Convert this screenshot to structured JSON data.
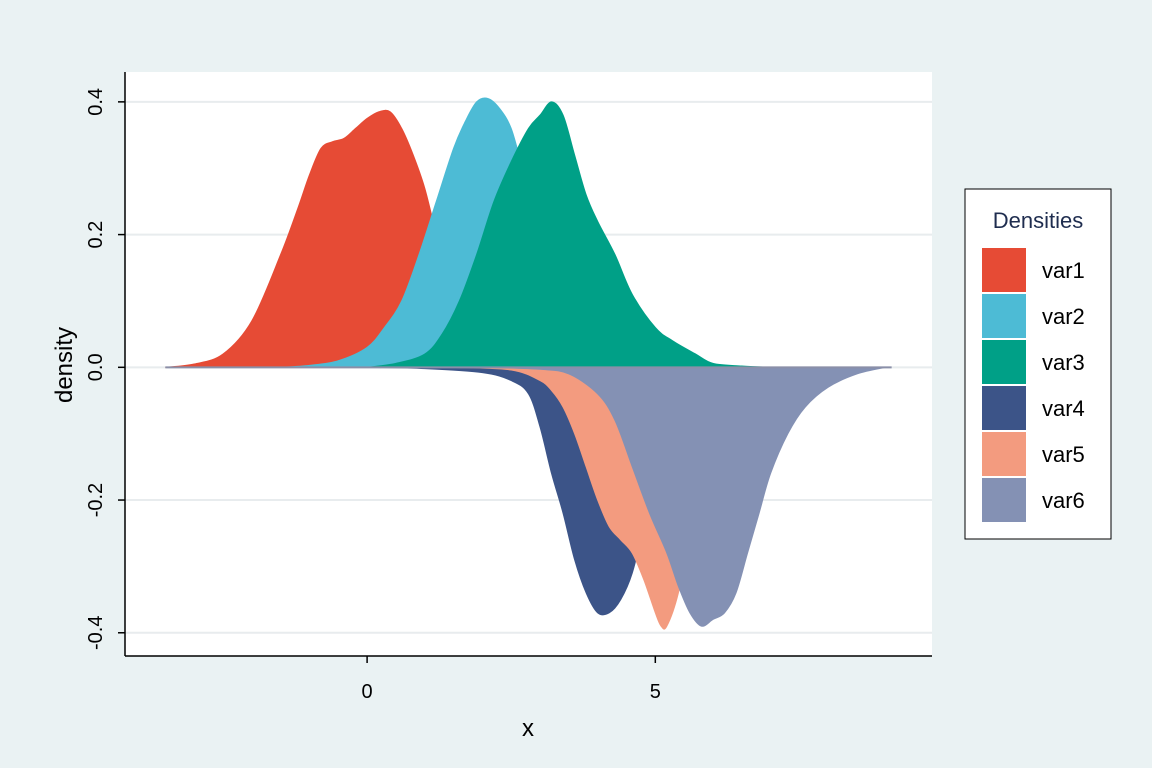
{
  "chart_data": {
    "type": "area",
    "title": "",
    "xlabel": "x",
    "ylabel": "density",
    "xlim": [
      -4.2,
      9.8
    ],
    "ylim": [
      -0.435,
      0.445
    ],
    "xticks": [
      0,
      5
    ],
    "xtick_labels": [
      "0",
      "5"
    ],
    "yticks": [
      -0.4,
      -0.2,
      0.0,
      0.2,
      0.4
    ],
    "ytick_labels": [
      "-0.4",
      "-0.2",
      "0.0",
      "0.2",
      "0.4"
    ],
    "grid": "horizontal",
    "legend": {
      "title": "Densities",
      "position": "right"
    },
    "series": [
      {
        "name": "var1",
        "direction": "up",
        "color": "#e64b35",
        "x": [
          -3.5,
          -3.0,
          -2.5,
          -2.0,
          -1.5,
          -1.2,
          -1.0,
          -0.8,
          -0.6,
          -0.4,
          -0.2,
          0.0,
          0.2,
          0.4,
          0.6,
          0.8,
          1.0,
          1.2,
          1.4,
          1.6,
          1.8,
          2.0,
          2.5,
          3.0
        ],
        "y": [
          0.0,
          0.005,
          0.02,
          0.07,
          0.17,
          0.24,
          0.29,
          0.33,
          0.34,
          0.345,
          0.36,
          0.375,
          0.385,
          0.385,
          0.36,
          0.32,
          0.27,
          0.2,
          0.13,
          0.08,
          0.04,
          0.02,
          0.004,
          0.0
        ]
      },
      {
        "name": "var2",
        "direction": "up",
        "color": "#4dbbd5",
        "x": [
          -1.5,
          -1.0,
          -0.5,
          0.0,
          0.3,
          0.6,
          0.9,
          1.2,
          1.5,
          1.7,
          1.9,
          2.1,
          2.3,
          2.5,
          2.7,
          3.0,
          3.3,
          3.6,
          4.0,
          4.5,
          5.0
        ],
        "y": [
          0.0,
          0.003,
          0.01,
          0.03,
          0.06,
          0.1,
          0.17,
          0.25,
          0.33,
          0.37,
          0.4,
          0.405,
          0.39,
          0.36,
          0.3,
          0.22,
          0.14,
          0.08,
          0.03,
          0.008,
          0.0
        ]
      },
      {
        "name": "var3",
        "direction": "up",
        "color": "#00a087",
        "x": [
          0.0,
          0.5,
          1.0,
          1.3,
          1.6,
          1.9,
          2.2,
          2.5,
          2.8,
          3.0,
          3.2,
          3.4,
          3.6,
          3.8,
          4.0,
          4.3,
          4.6,
          5.0,
          5.3,
          5.7,
          6.0,
          6.5,
          7.0
        ],
        "y": [
          0.0,
          0.006,
          0.02,
          0.05,
          0.1,
          0.17,
          0.25,
          0.31,
          0.36,
          0.38,
          0.4,
          0.38,
          0.32,
          0.26,
          0.22,
          0.17,
          0.11,
          0.06,
          0.04,
          0.02,
          0.006,
          0.002,
          0.0
        ]
      },
      {
        "name": "var4",
        "direction": "down",
        "color": "#3c5488",
        "x": [
          0.0,
          1.0,
          2.0,
          2.5,
          2.8,
          3.0,
          3.2,
          3.4,
          3.6,
          3.8,
          4.0,
          4.2,
          4.4,
          4.6,
          4.8,
          5.0,
          5.3,
          5.6,
          6.0
        ],
        "y": [
          0.0,
          0.002,
          0.008,
          0.02,
          0.04,
          0.09,
          0.16,
          0.22,
          0.29,
          0.34,
          0.37,
          0.37,
          0.35,
          0.31,
          0.24,
          0.16,
          0.07,
          0.02,
          0.0
        ]
      },
      {
        "name": "var5",
        "direction": "down",
        "color": "#f39b7f",
        "x": [
          1.5,
          2.5,
          3.0,
          3.2,
          3.4,
          3.6,
          3.8,
          4.0,
          4.2,
          4.4,
          4.6,
          4.8,
          5.0,
          5.1,
          5.2,
          5.4,
          5.6,
          5.8,
          6.0,
          6.5,
          7.0
        ],
        "y": [
          0.0,
          0.004,
          0.02,
          0.035,
          0.06,
          0.1,
          0.15,
          0.2,
          0.24,
          0.26,
          0.28,
          0.32,
          0.37,
          0.39,
          0.39,
          0.34,
          0.25,
          0.15,
          0.08,
          0.02,
          0.0
        ]
      },
      {
        "name": "var6",
        "direction": "down",
        "color": "#8491b4",
        "x": [
          2.0,
          3.0,
          3.5,
          4.0,
          4.3,
          4.6,
          4.9,
          5.2,
          5.4,
          5.6,
          5.8,
          6.0,
          6.2,
          6.4,
          6.6,
          6.8,
          7.0,
          7.3,
          7.6,
          8.0,
          8.5,
          9.0
        ],
        "y": [
          0.0,
          0.003,
          0.01,
          0.04,
          0.08,
          0.15,
          0.22,
          0.28,
          0.33,
          0.37,
          0.39,
          0.38,
          0.37,
          0.34,
          0.28,
          0.22,
          0.16,
          0.1,
          0.06,
          0.03,
          0.01,
          0.0
        ]
      }
    ]
  }
}
